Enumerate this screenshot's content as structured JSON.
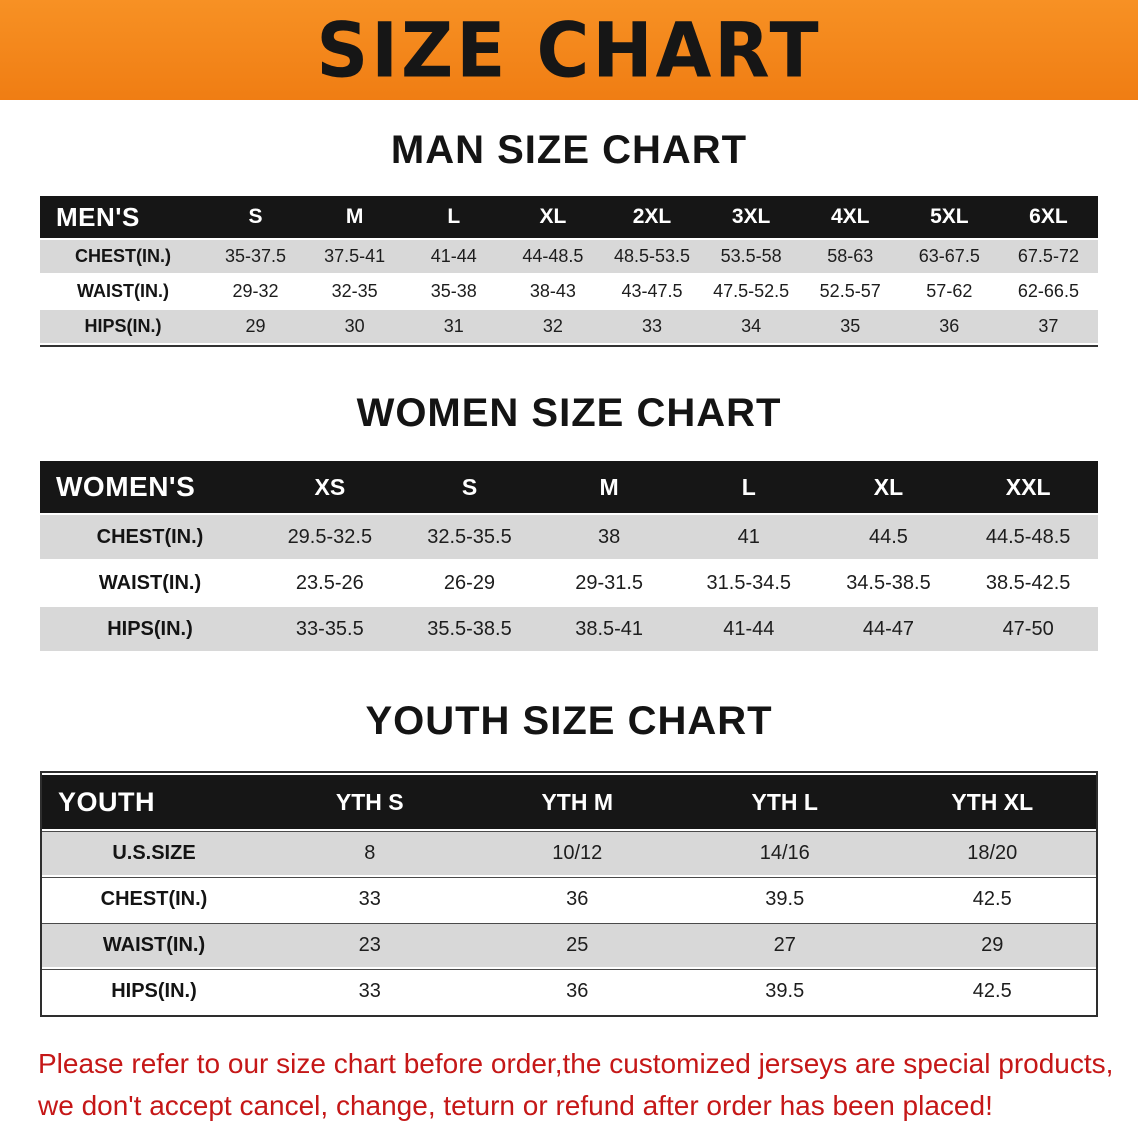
{
  "banner": {
    "title": "SIZE CHART"
  },
  "colors": {
    "banner_orange": "#f6871f",
    "table_header_bg": "#161616",
    "row_gray": "#d8d8d8",
    "row_white": "#ffffff",
    "note_red": "#c51717"
  },
  "sections": [
    {
      "id": "men",
      "heading": "MAN SIZE CHART",
      "table": {
        "label_header": "MEN'S",
        "columns": [
          "S",
          "M",
          "L",
          "XL",
          "2XL",
          "3XL",
          "4XL",
          "5XL",
          "6XL"
        ],
        "rows": [
          {
            "label": "CHEST(IN.)",
            "values": [
              "35-37.5",
              "37.5-41",
              "41-44",
              "44-48.5",
              "48.5-53.5",
              "53.5-58",
              "58-63",
              "63-67.5",
              "67.5-72"
            ]
          },
          {
            "label": "WAIST(IN.)",
            "values": [
              "29-32",
              "32-35",
              "35-38",
              "38-43",
              "43-47.5",
              "47.5-52.5",
              "52.5-57",
              "57-62",
              "62-66.5"
            ]
          },
          {
            "label": "HIPS(IN.)",
            "values": [
              "29",
              "30",
              "31",
              "32",
              "33",
              "34",
              "35",
              "36",
              "37"
            ]
          }
        ]
      }
    },
    {
      "id": "women",
      "heading": "WOMEN SIZE CHART",
      "table": {
        "label_header": "WOMEN'S",
        "columns": [
          "XS",
          "S",
          "M",
          "L",
          "XL",
          "XXL"
        ],
        "rows": [
          {
            "label": "CHEST(IN.)",
            "values": [
              "29.5-32.5",
              "32.5-35.5",
              "38",
              "41",
              "44.5",
              "44.5-48.5"
            ]
          },
          {
            "label": "WAIST(IN.)",
            "values": [
              "23.5-26",
              "26-29",
              "29-31.5",
              "31.5-34.5",
              "34.5-38.5",
              "38.5-42.5"
            ]
          },
          {
            "label": "HIPS(IN.)",
            "values": [
              "33-35.5",
              "35.5-38.5",
              "38.5-41",
              "41-44",
              "44-47",
              "47-50"
            ]
          }
        ]
      }
    },
    {
      "id": "youth",
      "heading": "YOUTH SIZE CHART",
      "table": {
        "label_header": "YOUTH",
        "columns": [
          "YTH S",
          "YTH M",
          "YTH L",
          "YTH XL"
        ],
        "rows": [
          {
            "label": "U.S.SIZE",
            "values": [
              "8",
              "10/12",
              "14/16",
              "18/20"
            ]
          },
          {
            "label": "CHEST(IN.)",
            "values": [
              "33",
              "36",
              "39.5",
              "42.5"
            ]
          },
          {
            "label": "WAIST(IN.)",
            "values": [
              "23",
              "25",
              "27",
              "29"
            ]
          },
          {
            "label": "HIPS(IN.)",
            "values": [
              "33",
              "36",
              "39.5",
              "42.5"
            ]
          }
        ]
      }
    }
  ],
  "note": {
    "lines": [
      "Please refer to our size chart before order,the customized jerseys are special products,",
      "we don't accept cancel, change, teturn or refund after order has been placed!"
    ]
  }
}
